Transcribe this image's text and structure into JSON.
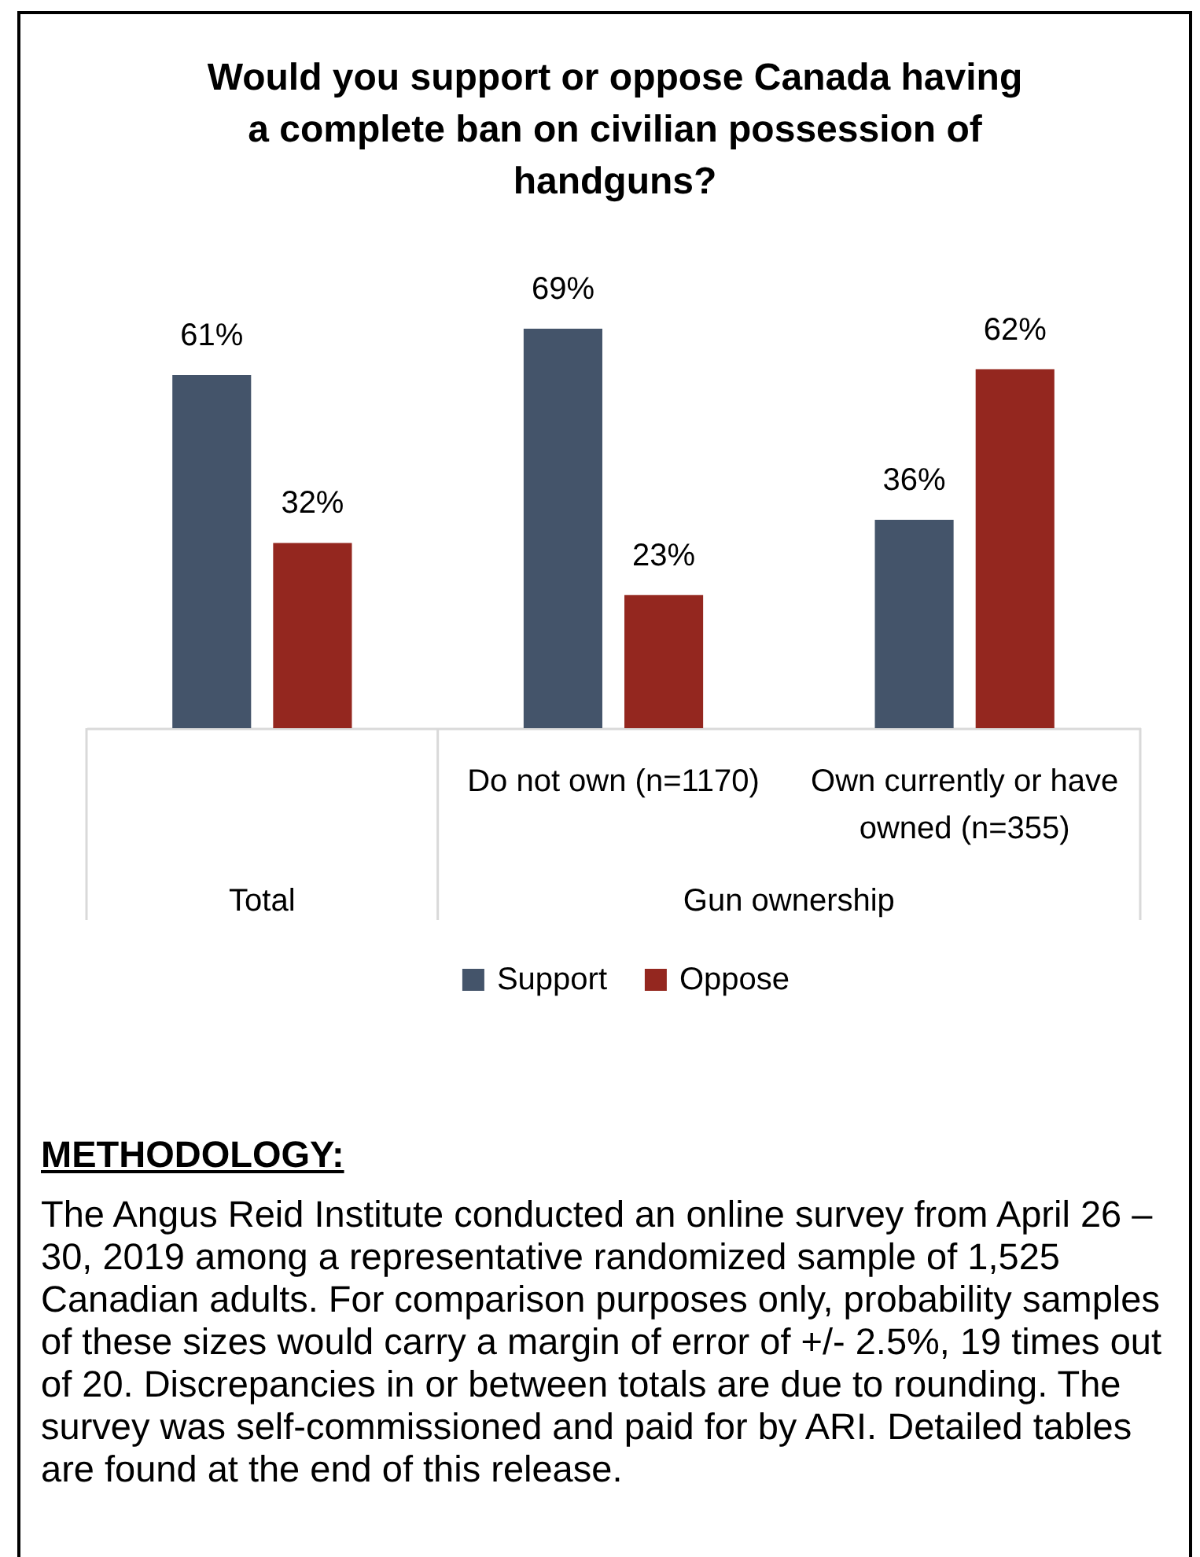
{
  "chart_data": {
    "type": "bar",
    "title": "Would you support or oppose Canada having a complete ban on civilian possession of handguns?",
    "categories": [
      null,
      "Do not own (n=1170)",
      "Own currently or have owned (n=355)"
    ],
    "series": [
      {
        "name": "Support",
        "color": "#44546a",
        "values": [
          61,
          69,
          36
        ],
        "value_labels": [
          "61%",
          "69%",
          "36%"
        ]
      },
      {
        "name": "Oppose",
        "color": "#94271f",
        "values": [
          32,
          23,
          62
        ],
        "value_labels": [
          "32%",
          "23%",
          "62%"
        ]
      }
    ],
    "legend": "bottom",
    "annotations": [
      "Total",
      "Gun ownership",
      "METHODOLOGY:",
      "The Angus Reid Institute conducted an online survey from April 26 – 30, 2019 among a representative randomized sample of 1,525 Canadian adults. For comparison purposes only, probability samples of these sizes would carry a margin of error of +/- 2.5%, 19 times out of 20. Discrepancies in or between totals are due to rounding. The survey was self-commissioned and paid for by ARI. Detailed tables are found at the end of this release."
    ]
  }
}
